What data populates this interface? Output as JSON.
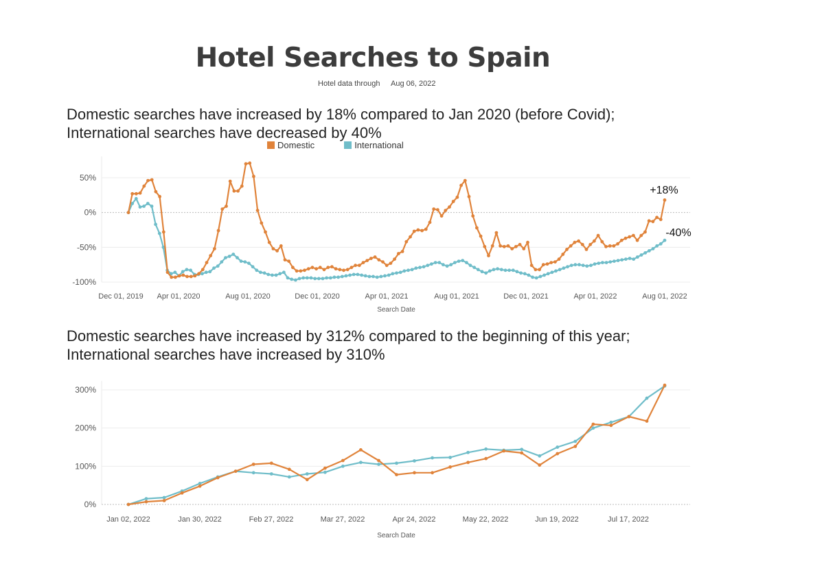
{
  "page": {
    "title": "Hotel Searches to Spain",
    "subtitle_label": "Hotel data through",
    "subtitle_date": "Aug 06, 2022",
    "colors": {
      "domestic": "#E0833A",
      "international": "#6FBDC9",
      "grid": "#dddddd"
    }
  },
  "legend": {
    "domestic": "Domestic",
    "international": "International"
  },
  "section1": {
    "heading_line1": "Domestic searches have increased by 18% compared to Jan 2020 (before Covid);",
    "heading_line2": "International searches have decreased by 40%"
  },
  "section2": {
    "heading_line1": "Domestic searches have increased by 312% compared to the beginning of this year;",
    "heading_line2": "International searches have increased by 310%"
  },
  "chart_data": [
    {
      "type": "line",
      "xlabel": "Search Date",
      "ylabel": "",
      "ylim": [
        -100,
        73
      ],
      "yticks": [
        50,
        0,
        -50,
        -100
      ],
      "ytick_labels": [
        "50%",
        "0%",
        "-50%",
        "-100%"
      ],
      "x_start": "Dec 01, 2019",
      "x_end": "Aug 01, 2022",
      "x_tick_labels": [
        "Dec 01, 2019",
        "Apr 01, 2020",
        "Aug 01, 2020",
        "Dec 01, 2020",
        "Apr 01, 2021",
        "Aug 01, 2021",
        "Dec 01, 2021",
        "Apr 01, 2022",
        "Aug 01, 2022"
      ],
      "annotations": [
        "+18%",
        "-40%"
      ],
      "series": [
        {
          "name": "Domestic",
          "color": "#E0833A",
          "values": [
            0,
            27,
            27,
            28,
            38,
            46,
            47,
            30,
            23,
            -28,
            -86,
            -93,
            -93,
            -91,
            -90,
            -92,
            -92,
            -91,
            -88,
            -82,
            -72,
            -62,
            -52,
            -26,
            5,
            9,
            45,
            31,
            31,
            38,
            70,
            71,
            52,
            3,
            -15,
            -28,
            -43,
            -52,
            -55,
            -48,
            -68,
            -70,
            -79,
            -84,
            -84,
            -83,
            -81,
            -79,
            -81,
            -79,
            -82,
            -79,
            -78,
            -81,
            -82,
            -83,
            -82,
            -79,
            -76,
            -76,
            -72,
            -69,
            -66,
            -64,
            -68,
            -71,
            -76,
            -73,
            -67,
            -59,
            -56,
            -42,
            -35,
            -27,
            -25,
            -26,
            -24,
            -14,
            5,
            4,
            -5,
            3,
            8,
            16,
            22,
            39,
            46,
            23,
            -5,
            -22,
            -34,
            -49,
            -62,
            -48,
            -29,
            -48,
            -49,
            -48,
            -52,
            -49,
            -46,
            -52,
            -43,
            -76,
            -82,
            -82,
            -75,
            -74,
            -72,
            -71,
            -67,
            -60,
            -53,
            -48,
            -43,
            -41,
            -46,
            -53,
            -46,
            -41,
            -33,
            -42,
            -49,
            -48,
            -48,
            -45,
            -40,
            -37,
            -35,
            -33,
            -40,
            -33,
            -28,
            -12,
            -13,
            -7,
            -10,
            18
          ]
        },
        {
          "name": "International",
          "color": "#6FBDC9",
          "values": [
            0,
            13,
            20,
            8,
            9,
            13,
            9,
            -17,
            -30,
            -50,
            -83,
            -88,
            -86,
            -91,
            -85,
            -82,
            -83,
            -89,
            -89,
            -88,
            -86,
            -85,
            -80,
            -77,
            -71,
            -65,
            -63,
            -60,
            -65,
            -70,
            -71,
            -73,
            -78,
            -83,
            -86,
            -87,
            -89,
            -90,
            -90,
            -88,
            -86,
            -94,
            -96,
            -97,
            -95,
            -94,
            -94,
            -94,
            -95,
            -95,
            -95,
            -94,
            -94,
            -93,
            -93,
            -92,
            -91,
            -90,
            -89,
            -89,
            -90,
            -91,
            -92,
            -92,
            -93,
            -92,
            -91,
            -90,
            -88,
            -87,
            -86,
            -84,
            -83,
            -82,
            -80,
            -79,
            -78,
            -76,
            -74,
            -72,
            -72,
            -75,
            -77,
            -75,
            -72,
            -70,
            -69,
            -72,
            -76,
            -79,
            -82,
            -85,
            -87,
            -84,
            -82,
            -81,
            -82,
            -83,
            -83,
            -83,
            -85,
            -87,
            -88,
            -90,
            -93,
            -94,
            -92,
            -90,
            -88,
            -86,
            -84,
            -82,
            -80,
            -78,
            -76,
            -75,
            -75,
            -76,
            -77,
            -76,
            -74,
            -73,
            -72,
            -72,
            -71,
            -70,
            -69,
            -68,
            -67,
            -66,
            -67,
            -64,
            -61,
            -58,
            -55,
            -52,
            -48,
            -45,
            -40
          ]
        }
      ]
    },
    {
      "type": "line",
      "xlabel": "Search Date",
      "ylabel": "",
      "ylim": [
        0,
        312
      ],
      "yticks": [
        300,
        200,
        100,
        0
      ],
      "ytick_labels": [
        "300%",
        "200%",
        "100%",
        "0%"
      ],
      "x_tick_labels": [
        "Jan 02, 2022",
        "Jan 30, 2022",
        "Feb 27, 2022",
        "Mar 27, 2022",
        "Apr 24, 2022",
        "May 22, 2022",
        "Jun 19, 2022",
        "Jul 17, 2022"
      ],
      "series": [
        {
          "name": "Domestic",
          "color": "#E0833A",
          "values": [
            0,
            7,
            10,
            30,
            48,
            70,
            87,
            105,
            108,
            92,
            65,
            95,
            115,
            143,
            115,
            78,
            83,
            83,
            98,
            110,
            120,
            140,
            135,
            103,
            133,
            152,
            210,
            207,
            230,
            218,
            312
          ]
        },
        {
          "name": "International",
          "color": "#6FBDC9",
          "values": [
            0,
            15,
            18,
            35,
            55,
            72,
            87,
            83,
            80,
            72,
            80,
            84,
            100,
            110,
            105,
            108,
            114,
            122,
            123,
            136,
            145,
            142,
            144,
            127,
            150,
            165,
            200,
            215,
            230,
            278,
            310
          ]
        }
      ]
    }
  ]
}
